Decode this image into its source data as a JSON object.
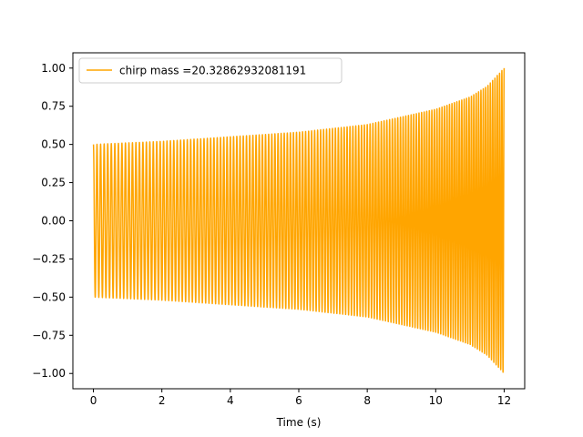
{
  "chart_data": {
    "type": "line",
    "title": "",
    "xlabel": "Time (s)",
    "ylabel": "",
    "xlim": [
      -0.6,
      12.6
    ],
    "ylim": [
      -1.1,
      1.1
    ],
    "x_ticks": [
      0,
      2,
      4,
      6,
      8,
      10,
      12
    ],
    "x_tick_labels": [
      "0",
      "2",
      "4",
      "6",
      "8",
      "10",
      "12"
    ],
    "y_ticks": [
      -1.0,
      -0.75,
      -0.5,
      -0.25,
      0.0,
      0.25,
      0.5,
      0.75,
      1.0
    ],
    "y_tick_labels": [
      "−1.00",
      "−0.75",
      "−0.50",
      "−0.25",
      "0.00",
      "0.25",
      "0.50",
      "0.75",
      "1.00"
    ],
    "grid": false,
    "legend": {
      "position": "top-left",
      "entries": [
        "chirp mass =20.32862932081191"
      ]
    },
    "series": [
      {
        "name": "chirp mass =20.32862932081191",
        "color": "#ffa500",
        "style": "chirp oscillation between ±envelope",
        "x_start": 0,
        "x_end": 12,
        "envelope": {
          "x": [
            0,
            2,
            4,
            6,
            8,
            10,
            11,
            11.5,
            12
          ],
          "amplitude": [
            0.5,
            0.52,
            0.55,
            0.58,
            0.63,
            0.73,
            0.81,
            0.88,
            1.0
          ]
        },
        "cycles": {
          "x": [
            0,
            4,
            8,
            12
          ],
          "frequency_hz": [
            9.5,
            10.5,
            12,
            15
          ]
        }
      }
    ]
  }
}
